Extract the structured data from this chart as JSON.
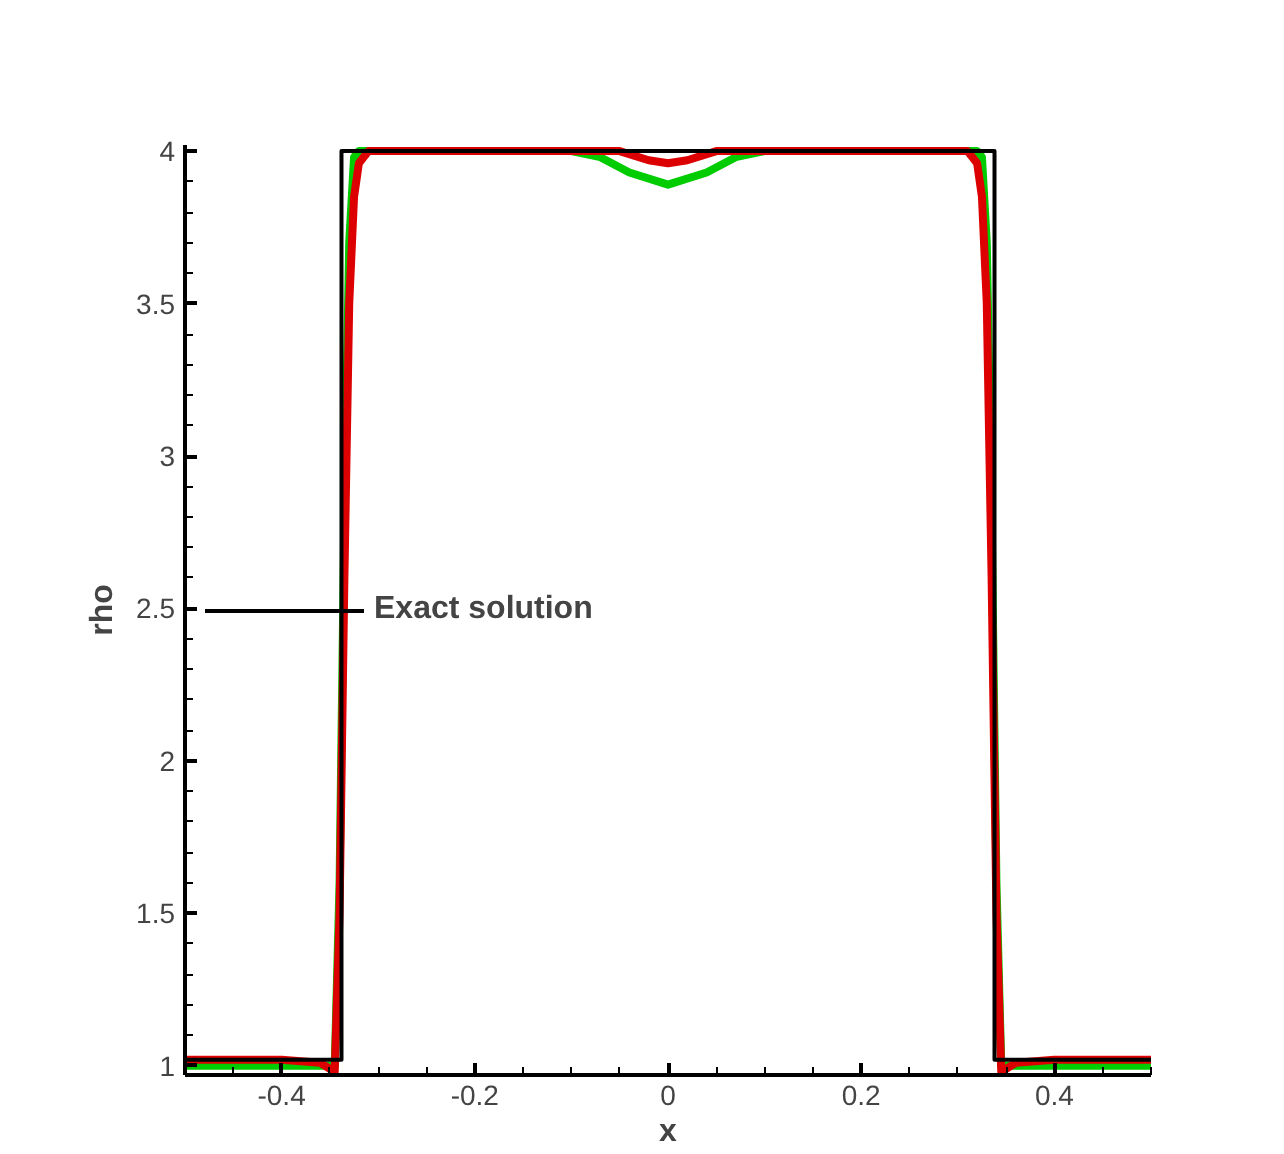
{
  "chart_data": {
    "type": "line",
    "xlabel": "x",
    "ylabel": "rho",
    "xlim": [
      -0.5,
      0.5
    ],
    "ylim": [
      0.97,
      4.02
    ],
    "xticks": [
      -0.4,
      -0.2,
      0,
      0.2,
      0.4
    ],
    "yticks": [
      1,
      1.5,
      2,
      2.5,
      3,
      3.5,
      4
    ],
    "grid": false,
    "legend": "left",
    "line_style": "solid",
    "marker": "none",
    "series": [
      {
        "color": "#00cc00",
        "x": [
          -0.5,
          -0.4,
          -0.36,
          -0.345,
          -0.34,
          -0.335,
          -0.33,
          -0.325,
          -0.32,
          -0.1,
          -0.07,
          -0.04,
          0,
          0.04,
          0.07,
          0.1,
          0.32,
          0.325,
          0.33,
          0.335,
          0.34,
          0.345,
          0.36,
          0.4,
          0.5
        ],
        "values": [
          1.0,
          1.0,
          1.0,
          1.0,
          1.6,
          2.8,
          3.7,
          3.98,
          4.0,
          4.0,
          3.98,
          3.93,
          3.89,
          3.93,
          3.98,
          4.0,
          4.0,
          3.98,
          3.7,
          2.8,
          1.6,
          1.0,
          1.0,
          1.0,
          1.0
        ]
      },
      {
        "color": "#dd0000",
        "x": [
          -0.5,
          -0.4,
          -0.36,
          -0.345,
          -0.34,
          -0.335,
          -0.33,
          -0.325,
          -0.32,
          -0.31,
          -0.05,
          -0.02,
          0,
          0.02,
          0.05,
          0.31,
          0.32,
          0.325,
          0.33,
          0.335,
          0.34,
          0.345,
          0.36,
          0.4,
          0.5
        ],
        "values": [
          1.02,
          1.02,
          1.01,
          0.98,
          1.5,
          2.6,
          3.5,
          3.85,
          3.96,
          4.0,
          4.0,
          3.97,
          3.96,
          3.97,
          4.0,
          4.0,
          3.96,
          3.85,
          3.5,
          2.6,
          1.5,
          0.98,
          1.01,
          1.02,
          1.02
        ]
      },
      {
        "name": "Exact solution",
        "color": "#000000",
        "x": [
          -0.5,
          -0.338,
          -0.338,
          0.338,
          0.338,
          0.5
        ],
        "values": [
          1.02,
          1.02,
          4.0,
          4.0,
          1.02,
          1.02
        ]
      }
    ]
  }
}
